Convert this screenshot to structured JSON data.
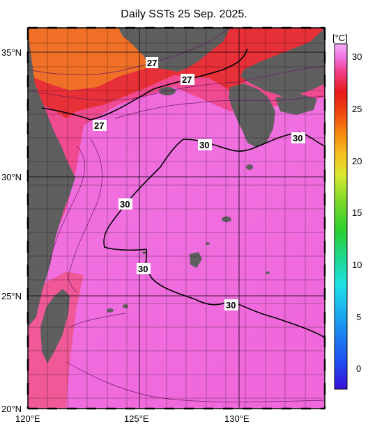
{
  "title": "Daily SSTs 25 Sep. 2025.",
  "axes": {
    "x_ticks": [
      "120°E",
      "125°E",
      "130°E"
    ],
    "y_ticks": [
      "35°N",
      "30°N",
      "25°N",
      "20°N"
    ]
  },
  "contour_labels": [
    "27",
    "27",
    "27",
    "30",
    "30",
    "30",
    "30",
    "30"
  ],
  "colorbar": {
    "unit": "[°C]",
    "ticks": [
      "30",
      "25",
      "20",
      "15",
      "10",
      "5",
      "0"
    ],
    "colors": [
      "#3a10d8",
      "#1f4ff0",
      "#1c9ef0",
      "#1ee0e8",
      "#1ed890",
      "#2ad030",
      "#7ad82a",
      "#d8e830",
      "#f8c020",
      "#f88a10",
      "#f04810",
      "#e81818",
      "#f0408a",
      "#f070e0",
      "#f8b0f8"
    ]
  },
  "colors": {
    "land": "#5f5f5f",
    "warm_sea": "#f070e0",
    "hot_sea": "#e83038",
    "orange_sea": "#f07028"
  }
}
